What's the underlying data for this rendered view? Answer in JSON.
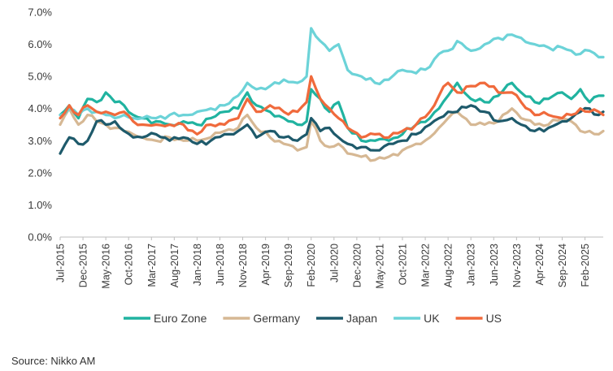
{
  "source": "Source: Nikko AM",
  "chart_data": {
    "type": "line",
    "xlabel": "",
    "ylabel": "",
    "ylim": [
      0,
      7
    ],
    "yticks": [
      "0.0%",
      "1.0%",
      "2.0%",
      "3.0%",
      "4.0%",
      "5.0%",
      "6.0%",
      "7.0%"
    ],
    "xticks": [
      "Jul-2015",
      "Dec-2015",
      "May-2016",
      "Oct-2016",
      "Mar-2017",
      "Aug-2017",
      "Jan-2018",
      "Jun-2018",
      "Nov-2018",
      "Apr-2019",
      "Sep-2019",
      "Feb-2020",
      "Jul-2020",
      "Dec-2020",
      "May-2021",
      "Oct-2021",
      "Mar-2022",
      "Aug-2022",
      "Jan-2023",
      "Jun-2023",
      "Nov-2023",
      "Apr-2024",
      "Sep-2024",
      "Feb-2025"
    ],
    "x_start": "2015-07",
    "x_end": "2025-06",
    "legend_position": "bottom",
    "grid": false,
    "series": [
      {
        "name": "Euro Zone",
        "color": "#20b3a0",
        "points": [
          [
            "2015-07",
            3.8
          ],
          [
            "2015-09",
            4.1
          ],
          [
            "2015-11",
            3.7
          ],
          [
            "2016-01",
            4.3
          ],
          [
            "2016-03",
            4.2
          ],
          [
            "2016-05",
            4.5
          ],
          [
            "2016-07",
            4.2
          ],
          [
            "2016-09",
            4.1
          ],
          [
            "2016-11",
            3.8
          ],
          [
            "2017-01",
            3.7
          ],
          [
            "2017-04",
            3.6
          ],
          [
            "2017-07",
            3.5
          ],
          [
            "2017-10",
            3.6
          ],
          [
            "2018-01",
            3.5
          ],
          [
            "2018-04",
            3.7
          ],
          [
            "2018-07",
            3.9
          ],
          [
            "2018-10",
            4.0
          ],
          [
            "2018-12",
            4.5
          ],
          [
            "2019-02",
            4.1
          ],
          [
            "2019-05",
            3.9
          ],
          [
            "2019-08",
            3.7
          ],
          [
            "2019-11",
            3.5
          ],
          [
            "2020-01",
            3.6
          ],
          [
            "2020-02",
            4.6
          ],
          [
            "2020-04",
            4.3
          ],
          [
            "2020-06",
            3.9
          ],
          [
            "2020-08",
            4.2
          ],
          [
            "2020-10",
            3.4
          ],
          [
            "2021-01",
            3.0
          ],
          [
            "2021-04",
            3.0
          ],
          [
            "2021-07",
            3.0
          ],
          [
            "2021-10",
            3.2
          ],
          [
            "2022-01",
            3.5
          ],
          [
            "2022-04",
            3.7
          ],
          [
            "2022-06",
            4.0
          ],
          [
            "2022-08",
            4.4
          ],
          [
            "2022-10",
            4.8
          ],
          [
            "2023-01",
            4.3
          ],
          [
            "2023-04",
            4.2
          ],
          [
            "2023-07",
            4.4
          ],
          [
            "2023-10",
            4.8
          ],
          [
            "2023-12",
            4.5
          ],
          [
            "2024-03",
            4.2
          ],
          [
            "2024-06",
            4.3
          ],
          [
            "2024-09",
            4.5
          ],
          [
            "2024-11",
            4.3
          ],
          [
            "2025-01",
            4.6
          ],
          [
            "2025-03",
            4.2
          ],
          [
            "2025-05",
            4.4
          ],
          [
            "2025-06",
            4.4
          ]
        ]
      },
      {
        "name": "Germany",
        "color": "#d6b894",
        "points": [
          [
            "2015-07",
            3.5
          ],
          [
            "2015-09",
            4.0
          ],
          [
            "2015-11",
            3.5
          ],
          [
            "2016-01",
            3.8
          ],
          [
            "2016-03",
            3.6
          ],
          [
            "2016-05",
            3.5
          ],
          [
            "2016-07",
            3.4
          ],
          [
            "2016-09",
            3.3
          ],
          [
            "2016-11",
            3.2
          ],
          [
            "2017-01",
            3.1
          ],
          [
            "2017-04",
            3.0
          ],
          [
            "2017-07",
            3.1
          ],
          [
            "2017-10",
            3.0
          ],
          [
            "2018-01",
            3.0
          ],
          [
            "2018-04",
            3.1
          ],
          [
            "2018-07",
            3.3
          ],
          [
            "2018-10",
            3.4
          ],
          [
            "2018-12",
            3.8
          ],
          [
            "2019-02",
            3.4
          ],
          [
            "2019-05",
            3.1
          ],
          [
            "2019-08",
            2.9
          ],
          [
            "2019-11",
            2.7
          ],
          [
            "2020-01",
            2.8
          ],
          [
            "2020-02",
            3.6
          ],
          [
            "2020-04",
            3.0
          ],
          [
            "2020-06",
            2.8
          ],
          [
            "2020-08",
            2.9
          ],
          [
            "2020-10",
            2.6
          ],
          [
            "2021-01",
            2.5
          ],
          [
            "2021-04",
            2.4
          ],
          [
            "2021-07",
            2.5
          ],
          [
            "2021-10",
            2.7
          ],
          [
            "2022-01",
            2.9
          ],
          [
            "2022-04",
            3.1
          ],
          [
            "2022-06",
            3.4
          ],
          [
            "2022-08",
            3.7
          ],
          [
            "2022-10",
            3.9
          ],
          [
            "2023-01",
            3.5
          ],
          [
            "2023-04",
            3.5
          ],
          [
            "2023-07",
            3.6
          ],
          [
            "2023-10",
            4.0
          ],
          [
            "2023-12",
            3.7
          ],
          [
            "2024-03",
            3.5
          ],
          [
            "2024-06",
            3.5
          ],
          [
            "2024-09",
            3.7
          ],
          [
            "2024-11",
            3.6
          ],
          [
            "2025-01",
            3.3
          ],
          [
            "2025-03",
            3.3
          ],
          [
            "2025-05",
            3.2
          ],
          [
            "2025-06",
            3.3
          ]
        ]
      },
      {
        "name": "Japan",
        "color": "#1e5a6b",
        "points": [
          [
            "2015-07",
            2.6
          ],
          [
            "2015-09",
            3.1
          ],
          [
            "2015-11",
            2.9
          ],
          [
            "2016-01",
            3.0
          ],
          [
            "2016-03",
            3.6
          ],
          [
            "2016-05",
            3.5
          ],
          [
            "2016-07",
            3.6
          ],
          [
            "2016-09",
            3.3
          ],
          [
            "2016-11",
            3.1
          ],
          [
            "2017-01",
            3.1
          ],
          [
            "2017-04",
            3.2
          ],
          [
            "2017-07",
            3.0
          ],
          [
            "2017-10",
            3.1
          ],
          [
            "2018-01",
            2.9
          ],
          [
            "2018-04",
            3.0
          ],
          [
            "2018-07",
            3.2
          ],
          [
            "2018-10",
            3.3
          ],
          [
            "2018-12",
            3.5
          ],
          [
            "2019-02",
            3.1
          ],
          [
            "2019-05",
            3.3
          ],
          [
            "2019-08",
            3.1
          ],
          [
            "2019-11",
            3.0
          ],
          [
            "2020-01",
            3.2
          ],
          [
            "2020-02",
            3.7
          ],
          [
            "2020-04",
            3.3
          ],
          [
            "2020-06",
            3.4
          ],
          [
            "2020-08",
            3.1
          ],
          [
            "2020-10",
            2.9
          ],
          [
            "2021-01",
            2.8
          ],
          [
            "2021-04",
            2.7
          ],
          [
            "2021-07",
            2.9
          ],
          [
            "2021-10",
            3.0
          ],
          [
            "2022-01",
            3.2
          ],
          [
            "2022-04",
            3.5
          ],
          [
            "2022-06",
            3.7
          ],
          [
            "2022-08",
            3.9
          ],
          [
            "2022-10",
            3.9
          ],
          [
            "2023-01",
            4.1
          ],
          [
            "2023-04",
            3.9
          ],
          [
            "2023-07",
            3.6
          ],
          [
            "2023-10",
            3.7
          ],
          [
            "2023-12",
            3.5
          ],
          [
            "2024-03",
            3.3
          ],
          [
            "2024-06",
            3.4
          ],
          [
            "2024-09",
            3.6
          ],
          [
            "2024-11",
            3.7
          ],
          [
            "2025-01",
            3.9
          ],
          [
            "2025-03",
            4.0
          ],
          [
            "2025-05",
            3.8
          ],
          [
            "2025-06",
            3.9
          ]
        ]
      },
      {
        "name": "UK",
        "color": "#6cd3d8",
        "points": [
          [
            "2015-07",
            3.8
          ],
          [
            "2015-09",
            4.0
          ],
          [
            "2015-11",
            3.8
          ],
          [
            "2016-01",
            4.0
          ],
          [
            "2016-03",
            3.9
          ],
          [
            "2016-05",
            3.8
          ],
          [
            "2016-07",
            3.7
          ],
          [
            "2016-09",
            3.8
          ],
          [
            "2016-11",
            3.7
          ],
          [
            "2017-01",
            3.7
          ],
          [
            "2017-04",
            3.7
          ],
          [
            "2017-07",
            3.8
          ],
          [
            "2017-10",
            3.8
          ],
          [
            "2018-01",
            3.9
          ],
          [
            "2018-04",
            4.0
          ],
          [
            "2018-07",
            4.1
          ],
          [
            "2018-10",
            4.4
          ],
          [
            "2018-12",
            4.8
          ],
          [
            "2019-02",
            4.6
          ],
          [
            "2019-05",
            4.7
          ],
          [
            "2019-08",
            4.9
          ],
          [
            "2019-11",
            4.8
          ],
          [
            "2020-01",
            5.0
          ],
          [
            "2020-02",
            6.5
          ],
          [
            "2020-04",
            6.1
          ],
          [
            "2020-06",
            5.8
          ],
          [
            "2020-08",
            6.0
          ],
          [
            "2020-10",
            5.2
          ],
          [
            "2021-01",
            5.0
          ],
          [
            "2021-04",
            4.8
          ],
          [
            "2021-07",
            4.9
          ],
          [
            "2021-10",
            5.2
          ],
          [
            "2022-01",
            5.1
          ],
          [
            "2022-04",
            5.3
          ],
          [
            "2022-06",
            5.7
          ],
          [
            "2022-08",
            5.8
          ],
          [
            "2022-10",
            6.1
          ],
          [
            "2023-01",
            5.8
          ],
          [
            "2023-04",
            6.0
          ],
          [
            "2023-07",
            6.2
          ],
          [
            "2023-10",
            6.3
          ],
          [
            "2023-12",
            6.2
          ],
          [
            "2024-03",
            6.0
          ],
          [
            "2024-06",
            5.9
          ],
          [
            "2024-09",
            5.9
          ],
          [
            "2024-11",
            5.8
          ],
          [
            "2025-01",
            5.7
          ],
          [
            "2025-03",
            5.8
          ],
          [
            "2025-05",
            5.6
          ],
          [
            "2025-06",
            5.6
          ]
        ]
      },
      {
        "name": "US",
        "color": "#f06a3c",
        "points": [
          [
            "2015-07",
            3.7
          ],
          [
            "2015-09",
            4.1
          ],
          [
            "2015-11",
            3.8
          ],
          [
            "2016-01",
            4.1
          ],
          [
            "2016-03",
            3.9
          ],
          [
            "2016-05",
            3.9
          ],
          [
            "2016-07",
            3.8
          ],
          [
            "2016-09",
            3.9
          ],
          [
            "2016-11",
            3.6
          ],
          [
            "2017-01",
            3.5
          ],
          [
            "2017-04",
            3.5
          ],
          [
            "2017-07",
            3.5
          ],
          [
            "2017-10",
            3.5
          ],
          [
            "2018-01",
            3.2
          ],
          [
            "2018-04",
            3.5
          ],
          [
            "2018-07",
            3.5
          ],
          [
            "2018-10",
            3.7
          ],
          [
            "2018-12",
            4.3
          ],
          [
            "2019-02",
            3.9
          ],
          [
            "2019-05",
            4.1
          ],
          [
            "2019-08",
            3.9
          ],
          [
            "2019-11",
            3.9
          ],
          [
            "2020-01",
            4.2
          ],
          [
            "2020-02",
            5.0
          ],
          [
            "2020-04",
            4.3
          ],
          [
            "2020-06",
            4.0
          ],
          [
            "2020-08",
            3.7
          ],
          [
            "2020-10",
            3.4
          ],
          [
            "2021-01",
            3.1
          ],
          [
            "2021-04",
            3.2
          ],
          [
            "2021-07",
            3.1
          ],
          [
            "2021-10",
            3.3
          ],
          [
            "2022-01",
            3.5
          ],
          [
            "2022-04",
            3.9
          ],
          [
            "2022-06",
            4.4
          ],
          [
            "2022-08",
            4.8
          ],
          [
            "2022-10",
            4.5
          ],
          [
            "2023-01",
            4.7
          ],
          [
            "2023-04",
            4.8
          ],
          [
            "2023-07",
            4.5
          ],
          [
            "2023-10",
            4.5
          ],
          [
            "2023-12",
            4.2
          ],
          [
            "2024-03",
            3.8
          ],
          [
            "2024-06",
            3.8
          ],
          [
            "2024-09",
            3.7
          ],
          [
            "2024-11",
            3.8
          ],
          [
            "2025-01",
            4.0
          ],
          [
            "2025-03",
            3.9
          ],
          [
            "2025-05",
            3.9
          ],
          [
            "2025-06",
            3.8
          ]
        ]
      }
    ]
  }
}
